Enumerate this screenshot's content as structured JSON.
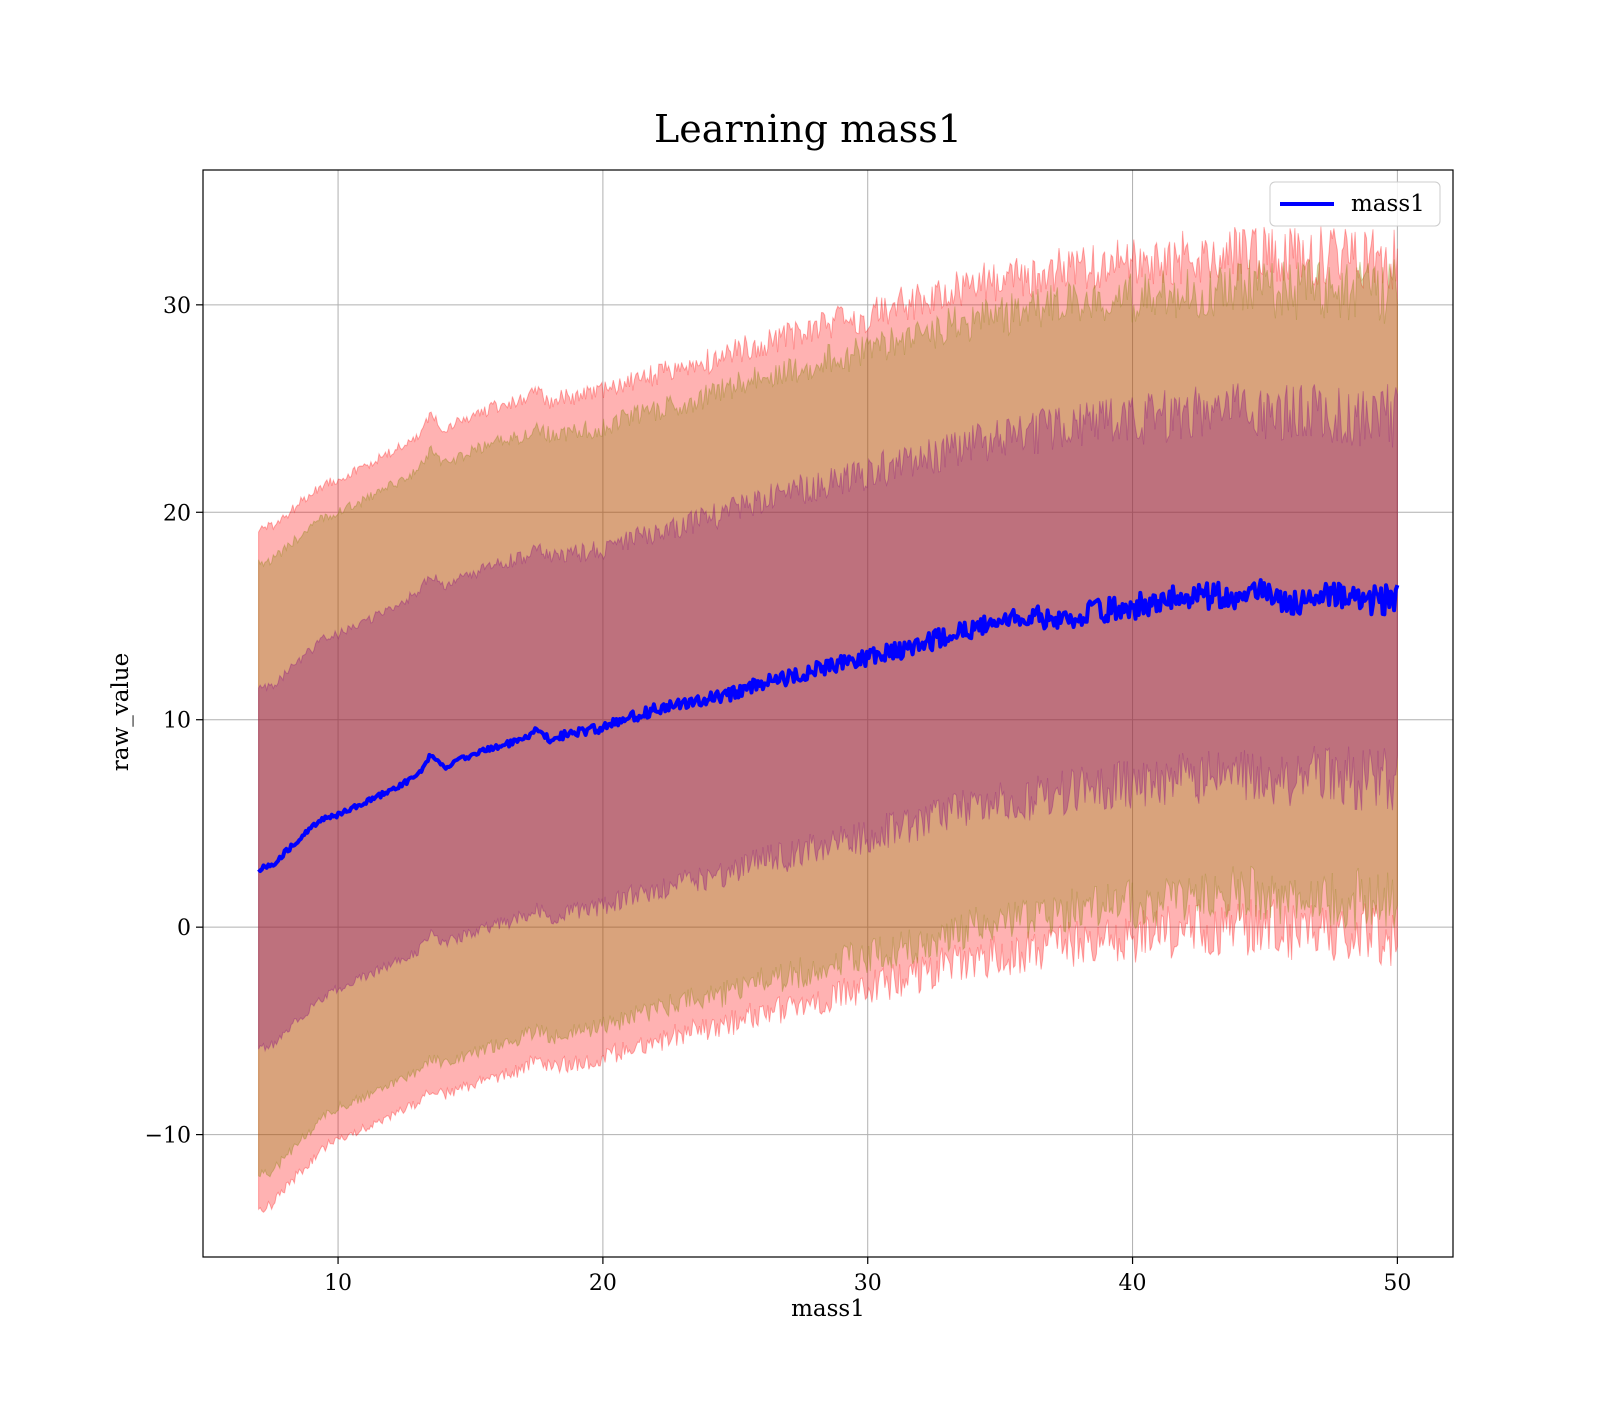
{
  "chart_data": {
    "type": "area",
    "title": "Learning mass1",
    "xlabel": "mass1",
    "ylabel": "raw_value",
    "xlim": [
      4.9,
      52.1
    ],
    "ylim": [
      -15.9,
      36.5
    ],
    "xticks": [
      10,
      20,
      30,
      40,
      50
    ],
    "xtick_labels": [
      "10",
      "20",
      "30",
      "40",
      "50"
    ],
    "yticks": [
      -10,
      0,
      10,
      20,
      30
    ],
    "ytick_labels": [
      "−10",
      "0",
      "10",
      "20",
      "30"
    ],
    "grid": true,
    "legend_position": "top-right",
    "x": [
      7,
      7.5,
      8,
      8.5,
      9,
      9.5,
      10,
      11,
      12,
      13,
      13.5,
      14,
      15,
      16,
      17,
      17.5,
      18,
      19,
      20,
      21,
      22,
      23,
      24,
      25,
      26,
      27,
      28,
      29,
      30,
      31,
      32,
      33,
      34,
      35,
      36,
      37,
      38,
      39,
      40,
      41,
      42,
      43,
      44,
      45,
      46,
      47,
      48,
      49,
      50
    ],
    "series": [
      {
        "name": "mass1",
        "color": "#0000ff",
        "values": [
          2.8,
          3.0,
          3.6,
          4.2,
          4.8,
          5.3,
          5.4,
          6.0,
          6.6,
          7.3,
          8.3,
          7.7,
          8.3,
          8.7,
          9.0,
          9.5,
          9.1,
          9.4,
          9.6,
          10.1,
          10.5,
          10.8,
          11.0,
          11.3,
          11.8,
          12.0,
          12.4,
          12.7,
          13.0,
          13.3,
          13.6,
          14.1,
          14.4,
          14.8,
          15.0,
          14.9,
          15.0,
          15.3,
          15.4,
          15.8,
          15.9,
          16.0,
          16.0,
          16.1,
          15.8,
          15.9,
          15.8,
          15.8,
          15.9
        ]
      }
    ],
    "bands": [
      {
        "color": "#ff0000",
        "opacity": 0.3,
        "lower": [
          -13.6,
          -13.4,
          -12.6,
          -11.9,
          -11.3,
          -10.6,
          -10.2,
          -9.7,
          -9.1,
          -8.5,
          -7.8,
          -8.1,
          -7.6,
          -7.2,
          -6.8,
          -6.4,
          -6.8,
          -6.5,
          -6.3,
          -5.8,
          -5.5,
          -5.1,
          -4.9,
          -4.6,
          -4.1,
          -3.9,
          -3.5,
          -3.2,
          -2.9,
          -2.6,
          -2.3,
          -1.8,
          -1.6,
          -1.4,
          -1.2,
          -1.0,
          -0.8,
          -0.6,
          -0.5,
          -0.3,
          -0.2,
          -0.1,
          0.0,
          0.0,
          -0.2,
          -0.1,
          -0.2,
          -0.3,
          -0.3
        ],
        "upper": [
          19.2,
          19.3,
          19.8,
          20.4,
          20.9,
          21.4,
          21.6,
          22.2,
          22.9,
          23.6,
          24.7,
          24.0,
          24.6,
          25.1,
          25.4,
          25.8,
          25.4,
          25.6,
          25.8,
          26.3,
          26.6,
          27.0,
          27.3,
          27.8,
          28.2,
          28.5,
          28.9,
          29.2,
          29.5,
          29.9,
          30.2,
          30.6,
          30.9,
          31.2,
          31.4,
          31.6,
          31.7,
          31.9,
          32.0,
          32.2,
          32.3,
          32.4,
          32.5,
          32.5,
          32.4,
          32.4,
          32.3,
          32.3,
          32.3
        ]
      },
      {
        "color": "#808000",
        "opacity": 0.3,
        "lower": [
          -12.0,
          -11.8,
          -11.1,
          -10.4,
          -9.8,
          -9.1,
          -8.7,
          -8.2,
          -7.6,
          -7.0,
          -6.3,
          -6.6,
          -6.1,
          -5.7,
          -5.3,
          -4.9,
          -5.3,
          -5.0,
          -4.8,
          -4.3,
          -4.0,
          -3.6,
          -3.4,
          -3.1,
          -2.6,
          -2.4,
          -2.0,
          -1.7,
          -1.4,
          -1.1,
          -0.8,
          -0.3,
          0.0,
          0.2,
          0.4,
          0.6,
          0.8,
          1.0,
          1.1,
          1.3,
          1.4,
          1.5,
          1.6,
          1.6,
          1.4,
          1.5,
          1.4,
          1.3,
          1.3
        ],
        "upper": [
          17.6,
          17.7,
          18.2,
          18.8,
          19.3,
          19.8,
          20.0,
          20.6,
          21.3,
          22.0,
          23.0,
          22.3,
          22.9,
          23.4,
          23.7,
          24.1,
          23.7,
          23.9,
          24.1,
          24.6,
          24.9,
          25.3,
          25.6,
          26.1,
          26.5,
          26.8,
          27.2,
          27.5,
          27.8,
          28.2,
          28.5,
          28.9,
          29.2,
          29.5,
          29.7,
          29.9,
          30.0,
          30.2,
          30.3,
          30.5,
          30.6,
          30.7,
          30.8,
          30.8,
          30.7,
          30.7,
          30.6,
          30.6,
          30.6
        ]
      },
      {
        "color": "#800080",
        "opacity": 0.3,
        "lower": [
          -5.9,
          -5.7,
          -5.1,
          -4.4,
          -3.9,
          -3.3,
          -3.0,
          -2.4,
          -1.8,
          -1.2,
          -0.3,
          -0.8,
          -0.3,
          0.1,
          0.5,
          0.9,
          0.5,
          0.8,
          1.0,
          1.5,
          1.8,
          2.2,
          2.4,
          2.7,
          3.2,
          3.4,
          3.8,
          4.1,
          4.4,
          4.7,
          5.0,
          5.5,
          5.7,
          6.0,
          6.2,
          6.4,
          6.6,
          6.8,
          6.9,
          7.1,
          7.2,
          7.3,
          7.4,
          7.4,
          7.2,
          7.3,
          7.2,
          7.1,
          7.1
        ],
        "upper": [
          11.5,
          11.6,
          12.2,
          12.8,
          13.4,
          13.9,
          14.1,
          14.7,
          15.4,
          16.1,
          17.0,
          16.4,
          17.0,
          17.5,
          17.8,
          18.2,
          17.8,
          18.0,
          18.2,
          18.7,
          19.0,
          19.4,
          19.7,
          20.2,
          20.6,
          20.9,
          21.3,
          21.6,
          21.9,
          22.3,
          22.6,
          23.0,
          23.3,
          23.6,
          23.8,
          24.0,
          24.1,
          24.3,
          24.4,
          24.6,
          24.7,
          24.8,
          24.9,
          24.9,
          24.8,
          24.8,
          24.7,
          24.7,
          24.7
        ]
      }
    ]
  }
}
